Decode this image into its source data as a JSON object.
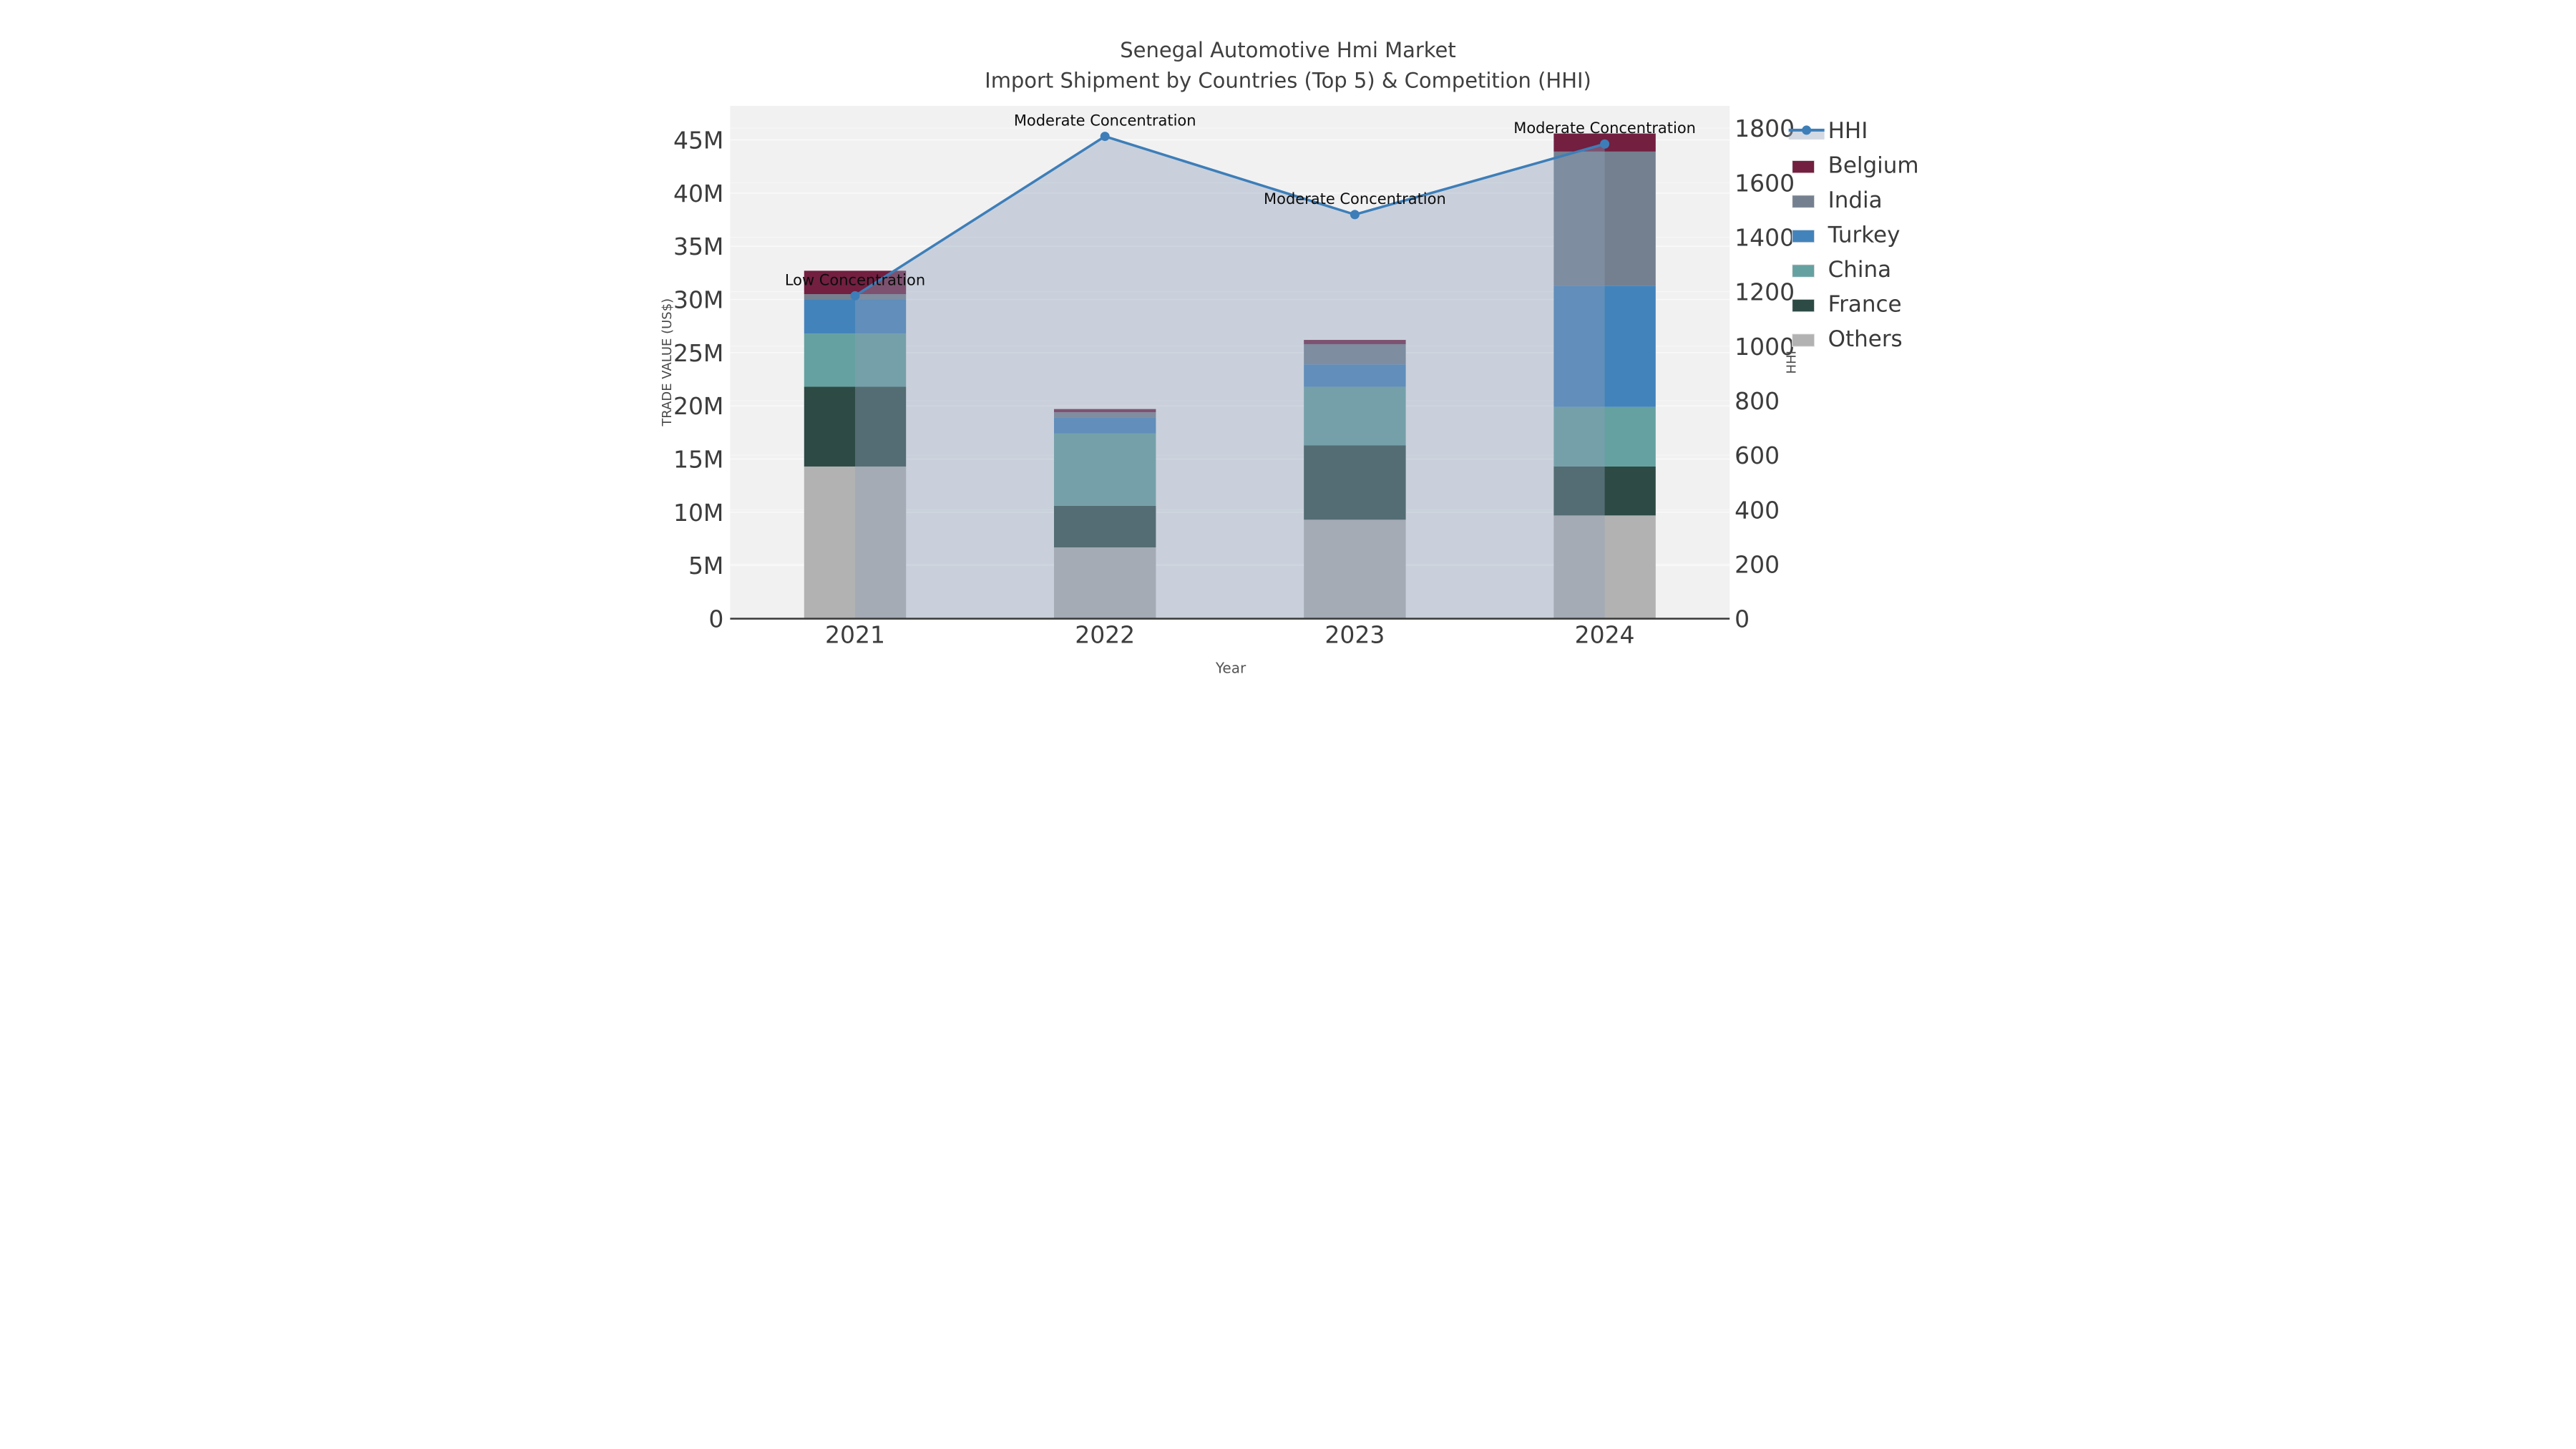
{
  "title": "Senegal Automotive Hmi Market",
  "subtitle": "Import Shipment by Countries (Top 5) & Competition (HHI)",
  "axes": {
    "x_label": "Year",
    "y_left_label": "TRADE VALUE (US$)",
    "y_right_label": "HHI",
    "y_left_ticks": [
      {
        "label": "0",
        "value": 0
      },
      {
        "label": "5M",
        "value": 5
      },
      {
        "label": "10M",
        "value": 10
      },
      {
        "label": "15M",
        "value": 15
      },
      {
        "label": "20M",
        "value": 20
      },
      {
        "label": "25M",
        "value": 25
      },
      {
        "label": "30M",
        "value": 30
      },
      {
        "label": "35M",
        "value": 35
      },
      {
        "label": "40M",
        "value": 40
      },
      {
        "label": "45M",
        "value": 45
      }
    ],
    "y_left_max": 48.2,
    "y_right_ticks": [
      {
        "label": "0",
        "value": 0
      },
      {
        "label": "200",
        "value": 200
      },
      {
        "label": "400",
        "value": 400
      },
      {
        "label": "600",
        "value": 600
      },
      {
        "label": "800",
        "value": 800
      },
      {
        "label": "1000",
        "value": 1000
      },
      {
        "label": "1200",
        "value": 1200
      },
      {
        "label": "1400",
        "value": 1400
      },
      {
        "label": "1600",
        "value": 1600
      },
      {
        "label": "1800",
        "value": 1800
      }
    ],
    "y_right_max": 1882
  },
  "chart_data": {
    "type": [
      "stacked-bar",
      "line"
    ],
    "categories": [
      "2021",
      "2022",
      "2023",
      "2024"
    ],
    "bar_unit": "million USD",
    "series": [
      {
        "name": "Others",
        "color": "#b2b2b2",
        "values": [
          14.3,
          6.7,
          9.3,
          9.7
        ]
      },
      {
        "name": "France",
        "color": "#2d4a45",
        "values": [
          7.5,
          3.9,
          7.0,
          4.6
        ]
      },
      {
        "name": "China",
        "color": "#65a1a0",
        "values": [
          5.0,
          6.8,
          5.5,
          5.6
        ]
      },
      {
        "name": "Turkey",
        "color": "#4383bb",
        "values": [
          3.2,
          1.5,
          2.1,
          11.4
        ]
      },
      {
        "name": "India",
        "color": "#74808f",
        "values": [
          0.5,
          0.5,
          1.9,
          12.6
        ]
      },
      {
        "name": "Belgium",
        "color": "#721f40",
        "values": [
          2.2,
          0.3,
          0.4,
          1.7
        ]
      }
    ],
    "hhi_series": {
      "name": "HHI",
      "line_color": "#3d7eb8",
      "area_color": "rgba(143,160,184,0.40)",
      "values": [
        1185,
        1770,
        1483,
        1742
      ]
    },
    "annotations": [
      {
        "category": "2021",
        "text": "Low Concentration"
      },
      {
        "category": "2022",
        "text": "Moderate Concentration"
      },
      {
        "category": "2023",
        "text": "Moderate Concentration"
      },
      {
        "category": "2024",
        "text": "Moderate Concentration"
      }
    ],
    "legend": [
      {
        "label": "HHI",
        "type": "line",
        "color": "#3d7eb8"
      },
      {
        "label": "Belgium",
        "type": "swatch",
        "color": "#721f40"
      },
      {
        "label": "India",
        "type": "swatch",
        "color": "#74808f"
      },
      {
        "label": "Turkey",
        "type": "swatch",
        "color": "#4383bb"
      },
      {
        "label": "China",
        "type": "swatch",
        "color": "#65a1a0"
      },
      {
        "label": "France",
        "type": "swatch",
        "color": "#2d4a45"
      },
      {
        "label": "Others",
        "type": "swatch",
        "color": "#b2b2b2"
      }
    ],
    "plot_background": "#f1f1f2",
    "grid_on": true,
    "legend_position": "right"
  }
}
